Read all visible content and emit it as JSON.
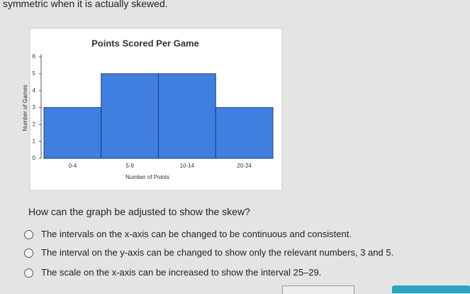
{
  "header_text": "symmetric when it is actually skewed.",
  "chart_data": {
    "type": "bar",
    "title": "Points Scored Per Game",
    "x_label": "Number of Points",
    "y_label": "Number of Games",
    "categories": [
      "0-4",
      "5-9",
      "10-14",
      "20-24"
    ],
    "values": [
      3,
      5,
      5,
      3
    ],
    "color": "#3f7fe0",
    "ylim": [
      0,
      6
    ],
    "yticks": [
      0,
      1,
      2,
      3,
      4,
      5,
      6
    ],
    "grid": false
  },
  "question": "How can the graph be adjusted to show the skew?",
  "options": [
    "The intervals on the x-axis can be changed to be continuous and consistent.",
    "The interval on the y-axis can be changed to show only the relevant numbers, 3 and 5.",
    "The scale on the x-axis can be increased to show the interval 25–29."
  ]
}
